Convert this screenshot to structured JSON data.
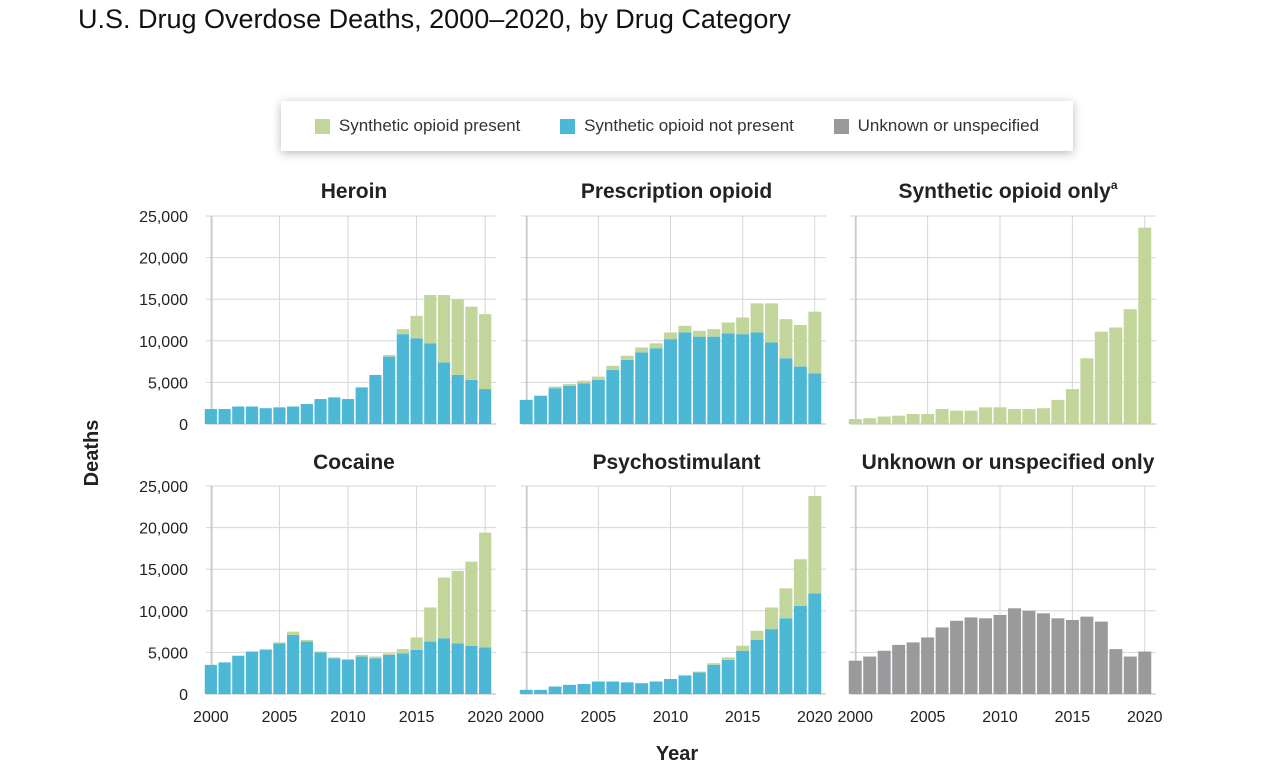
{
  "title": "U.S. Drug Overdose Deaths, 2000–2020, by Drug Category",
  "colors": {
    "synthetic_present": "#c2d69b",
    "synthetic_not_present": "#4db8d6",
    "unknown": "#9a9a9c"
  },
  "legend": [
    {
      "label": "Synthetic opioid present",
      "color": "#c2d69b"
    },
    {
      "label": "Synthetic opioid not present",
      "color": "#4db8d6"
    },
    {
      "label": "Unknown or unspecified",
      "color": "#9a9a9c"
    }
  ],
  "chart_data": {
    "type": "bar",
    "stacked": true,
    "xlabel": "Year",
    "ylabel": "Deaths",
    "ylim": [
      0,
      25000
    ],
    "yticks": [
      0,
      5000,
      10000,
      15000,
      20000,
      25000
    ],
    "ytick_labels": [
      "0",
      "5,000",
      "10,000",
      "15,000",
      "20,000",
      "25,000"
    ],
    "xticks": [
      2000,
      2005,
      2010,
      2015,
      2020
    ],
    "years": [
      2000,
      2001,
      2002,
      2003,
      2004,
      2005,
      2006,
      2007,
      2008,
      2009,
      2010,
      2011,
      2012,
      2013,
      2014,
      2015,
      2016,
      2017,
      2018,
      2019,
      2020
    ],
    "grid": true,
    "legend_position": "top-center",
    "panels": [
      {
        "title": "Heroin",
        "title_sup": "",
        "series": [
          {
            "name": "Synthetic opioid not present",
            "color": "#4db8d6",
            "values": [
              1800,
              1800,
              2100,
              2100,
              1900,
              2000,
              2100,
              2400,
              3000,
              3200,
              3000,
              4400,
              5900,
              8100,
              10800,
              10300,
              9700,
              7400,
              5900,
              5300,
              4200
            ]
          },
          {
            "name": "Synthetic opioid present",
            "color": "#c2d69b",
            "values": [
              0,
              0,
              0,
              0,
              0,
              0,
              0,
              0,
              0,
              0,
              0,
              0,
              0,
              200,
              600,
              2700,
              5800,
              8100,
              9100,
              8800,
              9000
            ]
          }
        ]
      },
      {
        "title": "Prescription opioid",
        "title_sup": "",
        "series": [
          {
            "name": "Synthetic opioid not present",
            "color": "#4db8d6",
            "values": [
              2900,
              3400,
              4300,
              4600,
              4900,
              5300,
              6500,
              7700,
              8600,
              9100,
              10200,
              11000,
              10500,
              10500,
              10900,
              10800,
              11000,
              9800,
              7900,
              6900,
              6100
            ]
          },
          {
            "name": "Synthetic opioid present",
            "color": "#c2d69b",
            "values": [
              0,
              0,
              200,
              200,
              300,
              400,
              500,
              500,
              600,
              600,
              800,
              800,
              700,
              900,
              1300,
              2000,
              3500,
              4700,
              4700,
              5000,
              7400
            ]
          }
        ]
      },
      {
        "title": "Synthetic opioid only",
        "title_sup": "a",
        "series": [
          {
            "name": "Synthetic opioid present",
            "color": "#c2d69b",
            "values": [
              600,
              700,
              900,
              1000,
              1200,
              1200,
              1800,
              1600,
              1600,
              2000,
              2000,
              1800,
              1800,
              1900,
              2900,
              4200,
              7900,
              11100,
              11600,
              13800,
              23600
            ]
          }
        ]
      },
      {
        "title": "Cocaine",
        "title_sup": "",
        "series": [
          {
            "name": "Synthetic opioid not present",
            "color": "#4db8d6",
            "values": [
              3500,
              3800,
              4600,
              5100,
              5300,
              6100,
              7100,
              6300,
              5000,
              4300,
              4100,
              4500,
              4300,
              4700,
              4900,
              5300,
              6300,
              6700,
              6100,
              5800,
              5600
            ]
          },
          {
            "name": "Synthetic opioid present",
            "color": "#c2d69b",
            "values": [
              0,
              0,
              0,
              0,
              100,
              100,
              400,
              200,
              100,
              100,
              100,
              200,
              200,
              200,
              500,
              1500,
              4100,
              7300,
              8700,
              10100,
              13800
            ]
          }
        ]
      },
      {
        "title": "Psychostimulant",
        "title_sup": "",
        "series": [
          {
            "name": "Synthetic opioid not present",
            "color": "#4db8d6",
            "values": [
              500,
              500,
              900,
              1100,
              1200,
              1500,
              1500,
              1400,
              1300,
              1500,
              1800,
              2200,
              2600,
              3500,
              4100,
              5200,
              6500,
              7800,
              9100,
              10600,
              12100
            ]
          },
          {
            "name": "Synthetic opioid present",
            "color": "#c2d69b",
            "values": [
              0,
              0,
              0,
              0,
              0,
              0,
              0,
              0,
              0,
              0,
              0,
              100,
              100,
              200,
              300,
              600,
              1100,
              2600,
              3600,
              5600,
              11700
            ]
          }
        ]
      },
      {
        "title": "Unknown or unspecified only",
        "title_sup": "",
        "series": [
          {
            "name": "Unknown or unspecified",
            "color": "#9a9a9c",
            "values": [
              4000,
              4500,
              5200,
              5900,
              6200,
              6800,
              8000,
              8800,
              9200,
              9100,
              9500,
              10300,
              10000,
              9700,
              9100,
              8900,
              9300,
              8700,
              5400,
              4500,
              5100
            ]
          }
        ]
      }
    ]
  }
}
